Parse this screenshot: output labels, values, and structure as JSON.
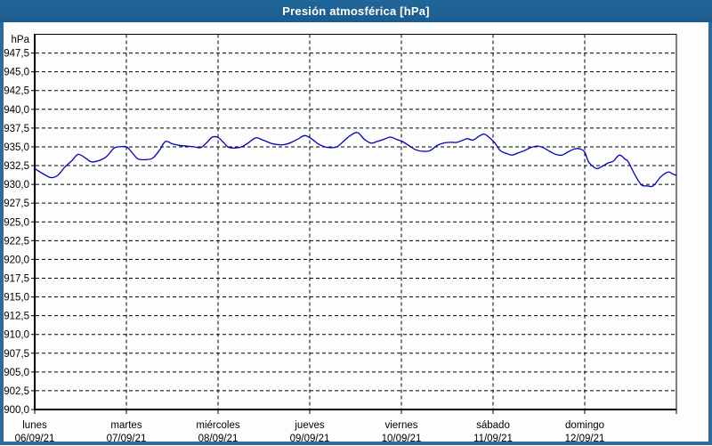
{
  "window": {
    "title": "Presión atmosférica [hPa]"
  },
  "colors": {
    "titlebar_bg": "#1d6195",
    "titlebar_text": "#ffffff",
    "frame": "#2b6b9e",
    "background": "#fdfdfd",
    "grid": "#000000",
    "axis": "#000000",
    "line": "#0000c0"
  },
  "chart_data": {
    "type": "line",
    "title": "Presión atmosférica [hPa]",
    "unit_label": "hPa",
    "ylim": [
      900,
      950
    ],
    "y_tick_step": 2.5,
    "y_tick_labels": [
      "947,5",
      "945,0",
      "942,5",
      "940,0",
      "937,5",
      "935,0",
      "932,5",
      "930,0",
      "927,5",
      "925,0",
      "922,5",
      "920,0",
      "917,5",
      "915,0",
      "912,5",
      "910,0",
      "907,5",
      "905,0",
      "902,5",
      "900,0"
    ],
    "x_days": [
      {
        "name": "lunes",
        "date": "06/09/21"
      },
      {
        "name": "martes",
        "date": "07/09/21"
      },
      {
        "name": "miércoles",
        "date": "08/09/21"
      },
      {
        "name": "jueves",
        "date": "09/09/21"
      },
      {
        "name": "viernes",
        "date": "10/09/21"
      },
      {
        "name": "sábado",
        "date": "11/09/21"
      },
      {
        "name": "domingo",
        "date": "12/09/21"
      }
    ],
    "x_hours_total": 168,
    "grid": "dashed",
    "legend": "none",
    "series": [
      {
        "name": "Presión atmosférica",
        "color": "#0000c0",
        "points_hour_hpa": [
          [
            0,
            932.1
          ],
          [
            1.9,
            931.5
          ],
          [
            4.2,
            930.9
          ],
          [
            6,
            931.2
          ],
          [
            7.9,
            932.3
          ],
          [
            9.8,
            933.2
          ],
          [
            11.4,
            934.0
          ],
          [
            13.3,
            933.5
          ],
          [
            14.9,
            933.0
          ],
          [
            17,
            933.2
          ],
          [
            18.8,
            933.7
          ],
          [
            20.7,
            934.8
          ],
          [
            22.1,
            935.0
          ],
          [
            24,
            935.0
          ],
          [
            25.4,
            934.3
          ],
          [
            27,
            933.4
          ],
          [
            29.1,
            933.3
          ],
          [
            30.9,
            933.5
          ],
          [
            32.6,
            934.5
          ],
          [
            34.2,
            935.7
          ],
          [
            36.1,
            935.4
          ],
          [
            37.9,
            935.2
          ],
          [
            39.8,
            935.1
          ],
          [
            41.7,
            935.0
          ],
          [
            43.5,
            934.9
          ],
          [
            45.1,
            935.6
          ],
          [
            46.5,
            936.3
          ],
          [
            48,
            936.25
          ],
          [
            49.6,
            935.5
          ],
          [
            50.7,
            934.95
          ],
          [
            52.4,
            934.85
          ],
          [
            54.2,
            935.0
          ],
          [
            56.1,
            935.6
          ],
          [
            57.9,
            936.2
          ],
          [
            59.8,
            935.9
          ],
          [
            61.7,
            935.5
          ],
          [
            63.5,
            935.3
          ],
          [
            65.4,
            935.3
          ],
          [
            67.2,
            935.6
          ],
          [
            69.1,
            936.1
          ],
          [
            70.7,
            936.5
          ],
          [
            72.4,
            936.1
          ],
          [
            74.2,
            935.4
          ],
          [
            75.9,
            935.0
          ],
          [
            77.5,
            934.9
          ],
          [
            79.1,
            935.0
          ],
          [
            81,
            935.8
          ],
          [
            82.6,
            936.5
          ],
          [
            84.5,
            936.9
          ],
          [
            86.3,
            936.0
          ],
          [
            88,
            935.5
          ],
          [
            89.6,
            935.7
          ],
          [
            91.4,
            936.0
          ],
          [
            93.1,
            936.3
          ],
          [
            94.7,
            936.0
          ],
          [
            96.3,
            935.7
          ],
          [
            98.2,
            935.1
          ],
          [
            99.8,
            934.6
          ],
          [
            101.7,
            934.4
          ],
          [
            103.5,
            934.5
          ],
          [
            105.4,
            935.2
          ],
          [
            107,
            935.5
          ],
          [
            108.9,
            935.6
          ],
          [
            110.5,
            935.6
          ],
          [
            112.2,
            935.9
          ],
          [
            113.3,
            936.1
          ],
          [
            114.7,
            935.9
          ],
          [
            116.3,
            936.4
          ],
          [
            117.7,
            936.7
          ],
          [
            119.1,
            936.2
          ],
          [
            120.5,
            935.5
          ],
          [
            121.9,
            934.5
          ],
          [
            123.6,
            934.1
          ],
          [
            125,
            933.9
          ],
          [
            126.6,
            934.2
          ],
          [
            128.2,
            934.5
          ],
          [
            129.9,
            934.9
          ],
          [
            131.5,
            935.1
          ],
          [
            133.1,
            934.9
          ],
          [
            134.8,
            934.4
          ],
          [
            136.4,
            934.0
          ],
          [
            138,
            933.9
          ],
          [
            139.9,
            934.4
          ],
          [
            141.5,
            934.75
          ],
          [
            142.9,
            934.7
          ],
          [
            144,
            934.3
          ],
          [
            145,
            933.0
          ],
          [
            146.4,
            932.3
          ],
          [
            147.3,
            932.1
          ],
          [
            148.9,
            932.5
          ],
          [
            150.1,
            932.85
          ],
          [
            151.5,
            933.1
          ],
          [
            153.1,
            933.9
          ],
          [
            154.7,
            933.3
          ],
          [
            155.4,
            933.0
          ],
          [
            157.3,
            931.1
          ],
          [
            158.9,
            929.9
          ],
          [
            160.3,
            929.8
          ],
          [
            161.9,
            929.8
          ],
          [
            164,
            931.05
          ],
          [
            165.9,
            931.65
          ],
          [
            167,
            931.4
          ],
          [
            168,
            931.2
          ]
        ]
      }
    ]
  }
}
